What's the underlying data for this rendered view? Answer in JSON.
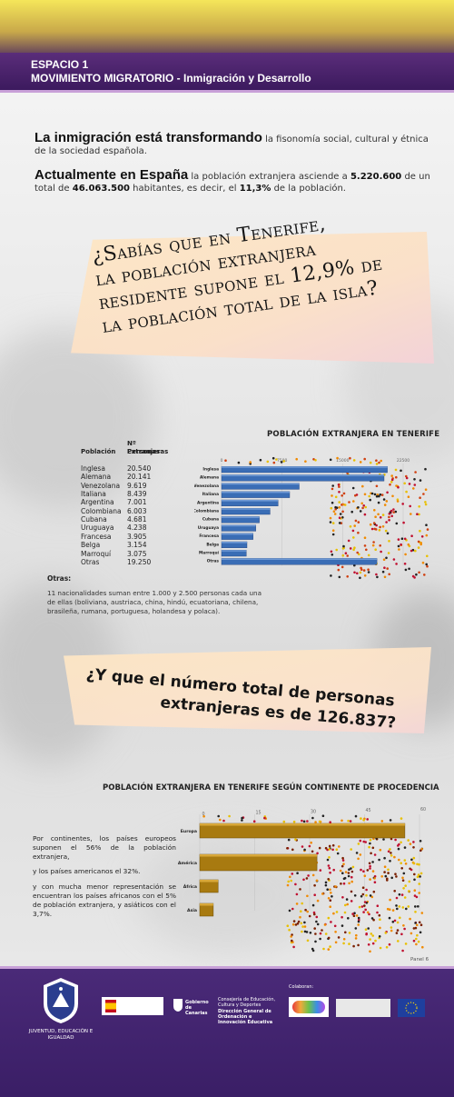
{
  "header": {
    "line1": "ESPACIO 1",
    "line2": "MOVIMIENTO MIGRATORIO - Inmigración y Desarrollo"
  },
  "intro": {
    "p1_big": "La inmigración está transformando",
    "p1_rest": " la fisonomía social, cultural y étnica de la sociedad española.",
    "p2_big": "Actualmente en España",
    "p2_a": " la población extranjera  asciende a ",
    "p2_num1": "5.220.600",
    "p2_b": " de un total de ",
    "p2_num2": "46.063.500",
    "p2_c": " habitantes, es decir, el ",
    "p2_pct": "11,3%",
    "p2_d": " de la población."
  },
  "question1": {
    "l1": "¿Sabías que en Tenerife,",
    "l2": "la población extranjera",
    "l3": "residente supone el 12,9% de",
    "l4": "la población total de la isla?"
  },
  "question2": {
    "l1": "¿Y que el número total de  personas",
    "l2": "extranjeras es de 126.837?"
  },
  "table": {
    "h_pob": "Población",
    "h_n1": "Nº Personas",
    "h_n2": "Extranjeras",
    "rows": [
      {
        "name": "Inglesa",
        "value": "20.540"
      },
      {
        "name": "Alemana",
        "value": "20.141"
      },
      {
        "name": "Venezolana",
        "value": "9.619"
      },
      {
        "name": "Italiana",
        "value": "8.439"
      },
      {
        "name": "Argentina",
        "value": "7.001"
      },
      {
        "name": "Colombiana",
        "value": "6.003"
      },
      {
        "name": "Cubana",
        "value": "4.681"
      },
      {
        "name": "Uruguaya",
        "value": "4.238"
      },
      {
        "name": "Francesa",
        "value": "3.905"
      },
      {
        "name": "Belga",
        "value": "3.154"
      },
      {
        "name": "Marroquí",
        "value": "3.075"
      },
      {
        "name": "Otras",
        "value": "19.250"
      }
    ],
    "otras_heading": "Otras:",
    "otras_text": "11 nacionalidades suman entre 1.000 y 2.500 personas cada una de ellas (boliviana, austriaca, china, hindú, ecuatoriana, chilena, brasileña, rumana, portuguesa, holandesa y polaca)."
  },
  "continent_text": {
    "p1": "Por continentes, los países europeos suponen el 56% de la población extranjera,",
    "p2": "y los países americanos  el 32%.",
    "p3": "y con mucha menor representación se encuentran los países africanos con el 5% de población extranjera, y asiáticos con el 3,7%."
  },
  "panel_label": "Panel 6",
  "footer": {
    "juventud": "JUVENTUD, EDUCACIÓN E IGUALDAD",
    "colaboran": "Colaboran:",
    "gobierno": "Gobierno de Canarias",
    "consejeria": "Consejería de Educación, Cultura y Deportes",
    "direccion": "Dirección General de Ordenación e Innovación Educativa"
  },
  "colors": {
    "purple": "#3c1a5e",
    "blue_bar": "#3a6db5",
    "gold_bar": "#a87a10",
    "callout": "#fde6c4"
  },
  "chart_data": [
    {
      "type": "bar",
      "orientation": "horizontal",
      "title": "POBLACIÓN EXTRANJERA EN TENERIFE",
      "categories": [
        "Inglesa",
        "Alemana",
        "Venezolana",
        "Italiana",
        "Argentina",
        "Colombiana",
        "Cubana",
        "Uruguaya",
        "Francesa",
        "Belga",
        "Marroquí",
        "Otras"
      ],
      "values": [
        20540,
        20141,
        9619,
        8439,
        7001,
        6003,
        4681,
        4238,
        3905,
        3154,
        3075,
        19250
      ],
      "xticks": [
        "0",
        "7500",
        "15000",
        "22500"
      ],
      "xlim": [
        0,
        22500
      ]
    },
    {
      "type": "bar",
      "orientation": "horizontal",
      "title": "POBLACIÓN EXTRANJERA EN TENERIFE SEGÚN CONTINENTE DE PROCEDENCIA",
      "categories": [
        "Europa",
        "América",
        "África",
        "Asia"
      ],
      "values": [
        56,
        32,
        5,
        3.7
      ],
      "xticks": [
        "0",
        "15",
        "30",
        "45",
        "60"
      ],
      "xlim": [
        0,
        60
      ]
    }
  ]
}
